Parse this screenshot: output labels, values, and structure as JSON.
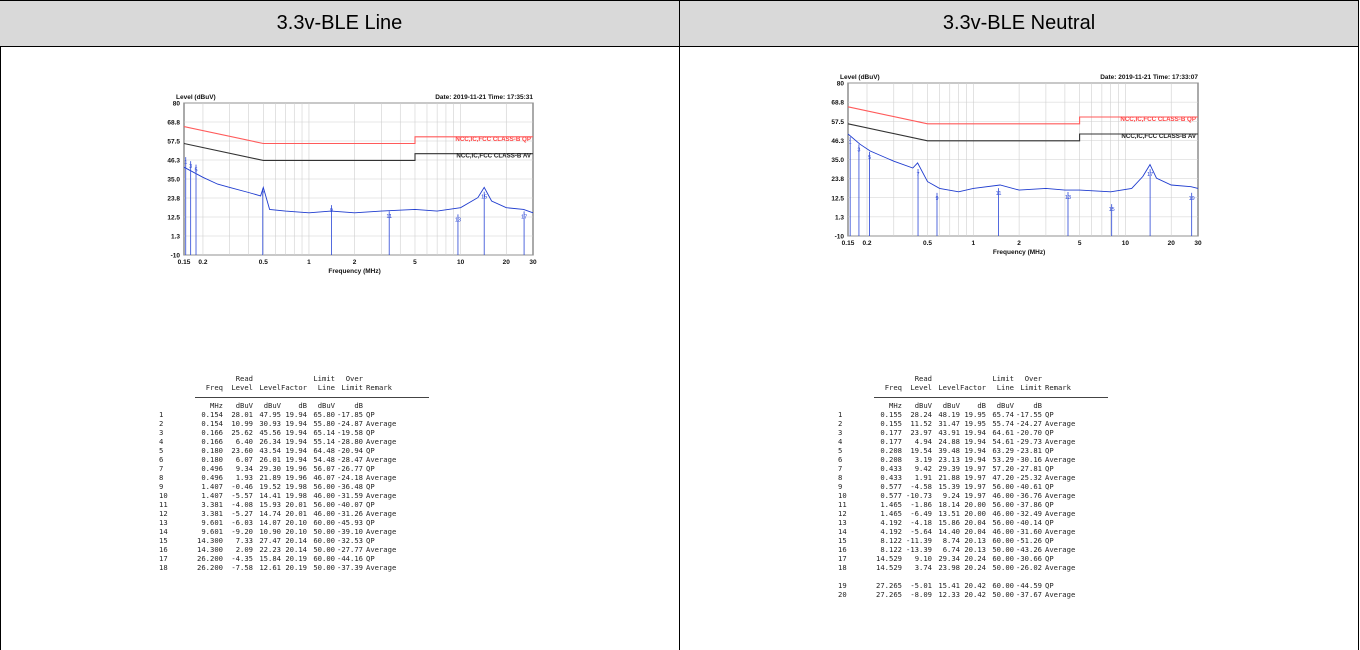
{
  "headers": {
    "left": "3.3v-BLE Line",
    "right": "3.3v-BLE  Neutral"
  },
  "charts": [
    {
      "id": "line",
      "y_axis_label": "Level (dBuV)",
      "date_text": "Date: 2019-11-21  Time: 17:35:31",
      "x_axis_label": "Frequency (MHz)",
      "limit_qp_label": "NCC,IC,FCC CLASS-B QP",
      "limit_av_label": "NCC,IC,FCC CLASS-B AV",
      "y_ticks": [
        "80",
        "68.8",
        "57.5",
        "46.3",
        "35.0",
        "23.8",
        "12.5",
        "1.3",
        "-10"
      ],
      "x_ticks": [
        "0.15",
        "0.2",
        "0.5",
        "1",
        "2",
        "5",
        "10",
        "20",
        "30"
      ]
    },
    {
      "id": "neutral",
      "y_axis_label": "Level (dBuV)",
      "date_text": "Date: 2019-11-21  Time: 17:33:07",
      "x_axis_label": "Frequency (MHz)",
      "limit_qp_label": "NCC,IC,FCC CLASS-B QP",
      "limit_av_label": "NCC,IC,FCC CLASS-B AV",
      "y_ticks": [
        "80",
        "68.8",
        "57.5",
        "46.3",
        "35.0",
        "23.8",
        "12.5",
        "1.3",
        "-10"
      ],
      "x_ticks": [
        "0.15",
        "0.2",
        "0.5",
        "1",
        "2",
        "5",
        "10",
        "20",
        "30"
      ]
    }
  ],
  "chart_data": [
    {
      "type": "line",
      "title": "3.3v-BLE Line",
      "xlabel": "Frequency (MHz)",
      "ylabel": "Level (dBuV)",
      "x_scale": "log",
      "xlim": [
        0.15,
        30
      ],
      "ylim": [
        -10,
        80
      ],
      "series": [
        {
          "name": "NCC,IC,FCC CLASS-B QP",
          "color": "#ff5a5a",
          "points": [
            [
              0.15,
              66
            ],
            [
              0.5,
              56
            ],
            [
              5,
              56
            ],
            [
              5,
              60
            ],
            [
              30,
              60
            ]
          ]
        },
        {
          "name": "NCC,IC,FCC CLASS-B AV",
          "color": "#333333",
          "points": [
            [
              0.15,
              56
            ],
            [
              0.5,
              46
            ],
            [
              5,
              46
            ],
            [
              5,
              50
            ],
            [
              30,
              50
            ]
          ]
        },
        {
          "name": "",
          "color": "#1f3ccf",
          "points": [
            [
              0.15,
              42
            ],
            [
              0.2,
              36
            ],
            [
              0.25,
              32
            ],
            [
              0.3,
              30
            ],
            [
              0.4,
              27
            ],
            [
              0.48,
              25
            ],
            [
              0.5,
              30
            ],
            [
              0.55,
              17
            ],
            [
              0.7,
              16
            ],
            [
              1,
              15
            ],
            [
              1.4,
              16
            ],
            [
              2,
              15
            ],
            [
              3,
              16
            ],
            [
              5,
              17
            ],
            [
              7,
              16
            ],
            [
              10,
              18
            ],
            [
              13,
              24
            ],
            [
              14.3,
              30
            ],
            [
              16,
              22
            ],
            [
              20,
              18
            ],
            [
              26,
              17
            ],
            [
              30,
              15
            ]
          ]
        }
      ],
      "markers": [
        {
          "freq": 0.154,
          "level": 47.95
        },
        {
          "freq": 0.166,
          "level": 45.56
        },
        {
          "freq": 0.18,
          "level": 43.54
        },
        {
          "freq": 0.496,
          "level": 29.3
        },
        {
          "freq": 1.407,
          "level": 19.52
        },
        {
          "freq": 3.381,
          "level": 15.93
        },
        {
          "freq": 9.601,
          "level": 14.07
        },
        {
          "freq": 14.3,
          "level": 27.47
        },
        {
          "freq": 26.2,
          "level": 15.84
        }
      ],
      "table": {
        "columns": [
          "",
          "Freq",
          "Read Level",
          "Level",
          "Factor",
          "Limit Line",
          "Over Limit",
          "Remark"
        ],
        "head1": [
          "",
          "",
          "Read",
          "",
          "",
          "Limit",
          "Over",
          ""
        ],
        "head2": [
          "",
          "Freq",
          "Level",
          "Level",
          "Factor",
          "Line",
          "Limit",
          "Remark"
        ],
        "units": [
          "",
          "MHz",
          "dBuV",
          "dBuV",
          "dB",
          "dBuV",
          "dB",
          ""
        ],
        "rows": [
          [
            "1",
            "0.154",
            "28.01",
            "47.95",
            "19.94",
            "65.80",
            "-17.85",
            "QP"
          ],
          [
            "2",
            "0.154",
            "10.99",
            "30.93",
            "19.94",
            "55.80",
            "-24.87",
            "Average"
          ],
          [
            "3",
            "0.166",
            "25.62",
            "45.56",
            "19.94",
            "65.14",
            "-19.58",
            "QP"
          ],
          [
            "4",
            "0.166",
            "6.40",
            "26.34",
            "19.94",
            "55.14",
            "-28.80",
            "Average"
          ],
          [
            "5",
            "0.180",
            "23.60",
            "43.54",
            "19.94",
            "64.48",
            "-20.94",
            "QP"
          ],
          [
            "6",
            "0.180",
            "6.07",
            "26.01",
            "19.94",
            "54.48",
            "-28.47",
            "Average"
          ],
          [
            "7",
            "0.496",
            "9.34",
            "29.30",
            "19.96",
            "56.07",
            "-26.77",
            "QP"
          ],
          [
            "8",
            "0.496",
            "1.93",
            "21.89",
            "19.96",
            "46.07",
            "-24.18",
            "Average"
          ],
          [
            "9",
            "1.407",
            "-0.46",
            "19.52",
            "19.98",
            "56.00",
            "-36.48",
            "QP"
          ],
          [
            "10",
            "1.407",
            "-5.57",
            "14.41",
            "19.98",
            "46.00",
            "-31.59",
            "Average"
          ],
          [
            "11",
            "3.381",
            "-4.08",
            "15.93",
            "20.01",
            "56.00",
            "-40.07",
            "QP"
          ],
          [
            "12",
            "3.381",
            "-5.27",
            "14.74",
            "20.01",
            "46.00",
            "-31.26",
            "Average"
          ],
          [
            "13",
            "9.601",
            "-6.03",
            "14.07",
            "20.10",
            "60.00",
            "-45.93",
            "QP"
          ],
          [
            "14",
            "9.601",
            "-9.20",
            "10.90",
            "20.10",
            "50.00",
            "-39.10",
            "Average"
          ],
          [
            "15",
            "14.300",
            "7.33",
            "27.47",
            "20.14",
            "60.00",
            "-32.53",
            "QP"
          ],
          [
            "16",
            "14.300",
            "2.09",
            "22.23",
            "20.14",
            "50.00",
            "-27.77",
            "Average"
          ],
          [
            "17",
            "26.200",
            "-4.35",
            "15.84",
            "20.19",
            "60.00",
            "-44.16",
            "QP"
          ],
          [
            "18",
            "26.200",
            "-7.58",
            "12.61",
            "20.19",
            "50.00",
            "-37.39",
            "Average"
          ]
        ]
      }
    },
    {
      "type": "line",
      "title": "3.3v-BLE  Neutral",
      "xlabel": "Frequency (MHz)",
      "ylabel": "Level (dBuV)",
      "x_scale": "log",
      "xlim": [
        0.15,
        30
      ],
      "ylim": [
        -10,
        80
      ],
      "series": [
        {
          "name": "NCC,IC,FCC CLASS-B QP",
          "color": "#ff5a5a",
          "points": [
            [
              0.15,
              66
            ],
            [
              0.5,
              56
            ],
            [
              5,
              56
            ],
            [
              5,
              60
            ],
            [
              30,
              60
            ]
          ]
        },
        {
          "name": "NCC,IC,FCC CLASS-B AV",
          "color": "#333333",
          "points": [
            [
              0.15,
              56
            ],
            [
              0.5,
              46
            ],
            [
              5,
              46
            ],
            [
              5,
              50
            ],
            [
              30,
              50
            ]
          ]
        },
        {
          "name": "",
          "color": "#1f3ccf",
          "points": [
            [
              0.15,
              50
            ],
            [
              0.18,
              44
            ],
            [
              0.21,
              40
            ],
            [
              0.3,
              34
            ],
            [
              0.4,
              30
            ],
            [
              0.43,
              33
            ],
            [
              0.5,
              22
            ],
            [
              0.6,
              18
            ],
            [
              0.8,
              16
            ],
            [
              1,
              18
            ],
            [
              1.5,
              20
            ],
            [
              2,
              17
            ],
            [
              3,
              18
            ],
            [
              4,
              17
            ],
            [
              5,
              17
            ],
            [
              8,
              16
            ],
            [
              11,
              18
            ],
            [
              13,
              25
            ],
            [
              14.5,
              32
            ],
            [
              16,
              24
            ],
            [
              20,
              20
            ],
            [
              27,
              19
            ],
            [
              30,
              18
            ]
          ]
        }
      ],
      "markers": [
        {
          "freq": 0.155,
          "level": 48.19
        },
        {
          "freq": 0.177,
          "level": 43.91
        },
        {
          "freq": 0.208,
          "level": 39.48
        },
        {
          "freq": 0.433,
          "level": 29.39
        },
        {
          "freq": 0.577,
          "level": 15.39
        },
        {
          "freq": 1.465,
          "level": 18.14
        },
        {
          "freq": 4.192,
          "level": 15.86
        },
        {
          "freq": 8.122,
          "level": 8.74
        },
        {
          "freq": 14.529,
          "level": 29.34
        },
        {
          "freq": 27.265,
          "level": 15.41
        }
      ],
      "table": {
        "columns": [
          "",
          "Freq",
          "Read Level",
          "Level",
          "Factor",
          "Limit Line",
          "Over Limit",
          "Remark"
        ],
        "head1": [
          "",
          "",
          "Read",
          "",
          "",
          "Limit",
          "Over",
          ""
        ],
        "head2": [
          "",
          "Freq",
          "Level",
          "Level",
          "Factor",
          "Line",
          "Limit",
          "Remark"
        ],
        "units": [
          "",
          "MHz",
          "dBuV",
          "dBuV",
          "dB",
          "dBuV",
          "dB",
          ""
        ],
        "rows": [
          [
            "1",
            "0.155",
            "28.24",
            "48.19",
            "19.95",
            "65.74",
            "-17.55",
            "QP"
          ],
          [
            "2",
            "0.155",
            "11.52",
            "31.47",
            "19.95",
            "55.74",
            "-24.27",
            "Average"
          ],
          [
            "3",
            "0.177",
            "23.97",
            "43.91",
            "19.94",
            "64.61",
            "-20.70",
            "QP"
          ],
          [
            "4",
            "0.177",
            "4.94",
            "24.88",
            "19.94",
            "54.61",
            "-29.73",
            "Average"
          ],
          [
            "5",
            "0.208",
            "19.54",
            "39.48",
            "19.94",
            "63.29",
            "-23.81",
            "QP"
          ],
          [
            "6",
            "0.208",
            "3.19",
            "23.13",
            "19.94",
            "53.29",
            "-30.16",
            "Average"
          ],
          [
            "7",
            "0.433",
            "9.42",
            "29.39",
            "19.97",
            "57.20",
            "-27.81",
            "QP"
          ],
          [
            "8",
            "0.433",
            "1.91",
            "21.88",
            "19.97",
            "47.20",
            "-25.32",
            "Average"
          ],
          [
            "9",
            "0.577",
            "-4.58",
            "15.39",
            "19.97",
            "56.00",
            "-40.61",
            "QP"
          ],
          [
            "10",
            "0.577",
            "-10.73",
            "9.24",
            "19.97",
            "46.00",
            "-36.76",
            "Average"
          ],
          [
            "11",
            "1.465",
            "-1.86",
            "18.14",
            "20.00",
            "56.00",
            "-37.86",
            "QP"
          ],
          [
            "12",
            "1.465",
            "-6.49",
            "13.51",
            "20.00",
            "46.00",
            "-32.49",
            "Average"
          ],
          [
            "13",
            "4.192",
            "-4.18",
            "15.86",
            "20.04",
            "56.00",
            "-40.14",
            "QP"
          ],
          [
            "14",
            "4.192",
            "-5.64",
            "14.40",
            "20.04",
            "46.00",
            "-31.60",
            "Average"
          ],
          [
            "15",
            "8.122",
            "-11.39",
            "8.74",
            "20.13",
            "60.00",
            "-51.26",
            "QP"
          ],
          [
            "16",
            "8.122",
            "-13.39",
            "6.74",
            "20.13",
            "50.00",
            "-43.26",
            "Average"
          ],
          [
            "17",
            "14.529",
            "9.10",
            "29.34",
            "20.24",
            "60.00",
            "-30.66",
            "QP"
          ],
          [
            "18",
            "14.529",
            "3.74",
            "23.98",
            "20.24",
            "50.00",
            "-26.02",
            "Average"
          ],
          [
            "19",
            "27.265",
            "-5.01",
            "15.41",
            "20.42",
            "60.00",
            "-44.59",
            "QP"
          ],
          [
            "20",
            "27.265",
            "-8.09",
            "12.33",
            "20.42",
            "50.00",
            "-37.67",
            "Average"
          ]
        ]
      }
    }
  ]
}
